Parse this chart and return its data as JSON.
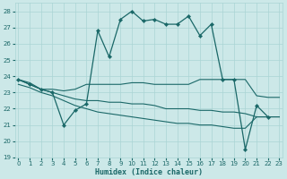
{
  "background_color": "#cce8e8",
  "grid_color": "#aad4d4",
  "line_color": "#1a6868",
  "xlabel": "Humidex (Indice chaleur)",
  "ylim": [
    19,
    28.5
  ],
  "xlim": [
    -0.3,
    23.3
  ],
  "yticks": [
    19,
    20,
    21,
    22,
    23,
    24,
    25,
    26,
    27,
    28
  ],
  "xticks": [
    0,
    1,
    2,
    3,
    4,
    5,
    6,
    7,
    8,
    9,
    10,
    11,
    12,
    13,
    14,
    15,
    16,
    17,
    18,
    19,
    20,
    21,
    22,
    23
  ],
  "s1_x": [
    0,
    1,
    2,
    3,
    4,
    5,
    6,
    7,
    8,
    9,
    10,
    11,
    12,
    13,
    14,
    15,
    16,
    17,
    18,
    19,
    20,
    21,
    22
  ],
  "s1_y": [
    23.8,
    23.5,
    23.2,
    23.0,
    21.0,
    21.9,
    22.3,
    26.8,
    25.2,
    27.5,
    28.0,
    27.4,
    27.5,
    27.2,
    27.2,
    27.7,
    26.5,
    27.2,
    23.8,
    23.8,
    19.5,
    22.2,
    21.5
  ],
  "s2_x": [
    0,
    1,
    2,
    3,
    4,
    5,
    6,
    7,
    8,
    9,
    10,
    11,
    12,
    13,
    14,
    15,
    16,
    17,
    18,
    19,
    20,
    21,
    22,
    23
  ],
  "s2_y": [
    23.8,
    23.6,
    23.2,
    23.2,
    23.1,
    23.2,
    23.5,
    23.5,
    23.5,
    23.5,
    23.6,
    23.6,
    23.5,
    23.5,
    23.5,
    23.5,
    23.8,
    23.8,
    23.8,
    23.8,
    23.8,
    22.8,
    22.7,
    22.7
  ],
  "s3_x": [
    0,
    1,
    2,
    3,
    4,
    5,
    6,
    7,
    8,
    9,
    10,
    11,
    12,
    13,
    14,
    15,
    16,
    17,
    18,
    19,
    20,
    21,
    22,
    23
  ],
  "s3_y": [
    23.8,
    23.5,
    23.2,
    23.0,
    22.8,
    22.6,
    22.5,
    22.5,
    22.4,
    22.4,
    22.3,
    22.3,
    22.2,
    22.0,
    22.0,
    22.0,
    21.9,
    21.9,
    21.8,
    21.8,
    21.7,
    21.5,
    21.5,
    21.5
  ],
  "s4_x": [
    0,
    1,
    2,
    3,
    4,
    5,
    6,
    7,
    8,
    9,
    10,
    11,
    12,
    13,
    14,
    15,
    16,
    17,
    18,
    19,
    20,
    21,
    22,
    23
  ],
  "s4_y": [
    23.5,
    23.3,
    23.0,
    22.8,
    22.5,
    22.2,
    22.0,
    21.8,
    21.7,
    21.6,
    21.5,
    21.4,
    21.3,
    21.2,
    21.1,
    21.1,
    21.0,
    21.0,
    20.9,
    20.8,
    20.8,
    21.5,
    21.5,
    21.5
  ]
}
